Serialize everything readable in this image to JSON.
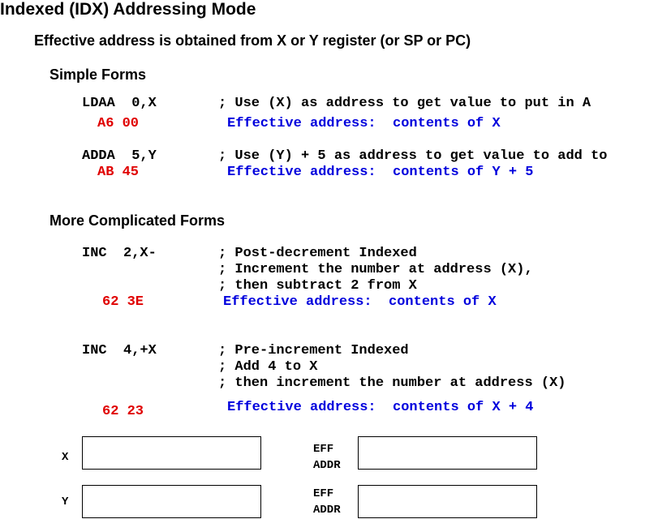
{
  "title": "Indexed (IDX) Addressing Mode",
  "subtitle": "Effective address is obtained from X or Y register (or SP or PC)",
  "simple": {
    "heading": "Simple Forms",
    "ex1": {
      "instr": "LDAA  0,X",
      "comment": "; Use (X) as address to get value to put in A",
      "code": "A6 00",
      "ea": "Effective address:  contents of X"
    },
    "ex2": {
      "instr": "ADDA  5,Y",
      "comment": "; Use (Y) + 5 as address to get value to add to",
      "code": "AB 45",
      "ea": "Effective address:  contents of Y + 5"
    }
  },
  "complicated": {
    "heading": "More Complicated Forms",
    "ex1": {
      "instr": "INC  2,X-",
      "comment1": "; Post-decrement Indexed",
      "comment2": "; Increment the number at address (X),",
      "comment3": "; then subtract 2 from X",
      "code": "62 3E",
      "ea": "Effective address:  contents of X"
    },
    "ex2": {
      "instr": "INC  4,+X",
      "comment1": "; Pre-increment Indexed",
      "comment2": "; Add 4 to X",
      "comment3": "; then increment the number at address (X)",
      "code": "62 23",
      "ea": "Effective address:  contents of X + 4"
    }
  },
  "registers": {
    "x_label": "X",
    "y_label": "Y",
    "eff_line1": "EFF",
    "eff_line2": "ADDR"
  }
}
